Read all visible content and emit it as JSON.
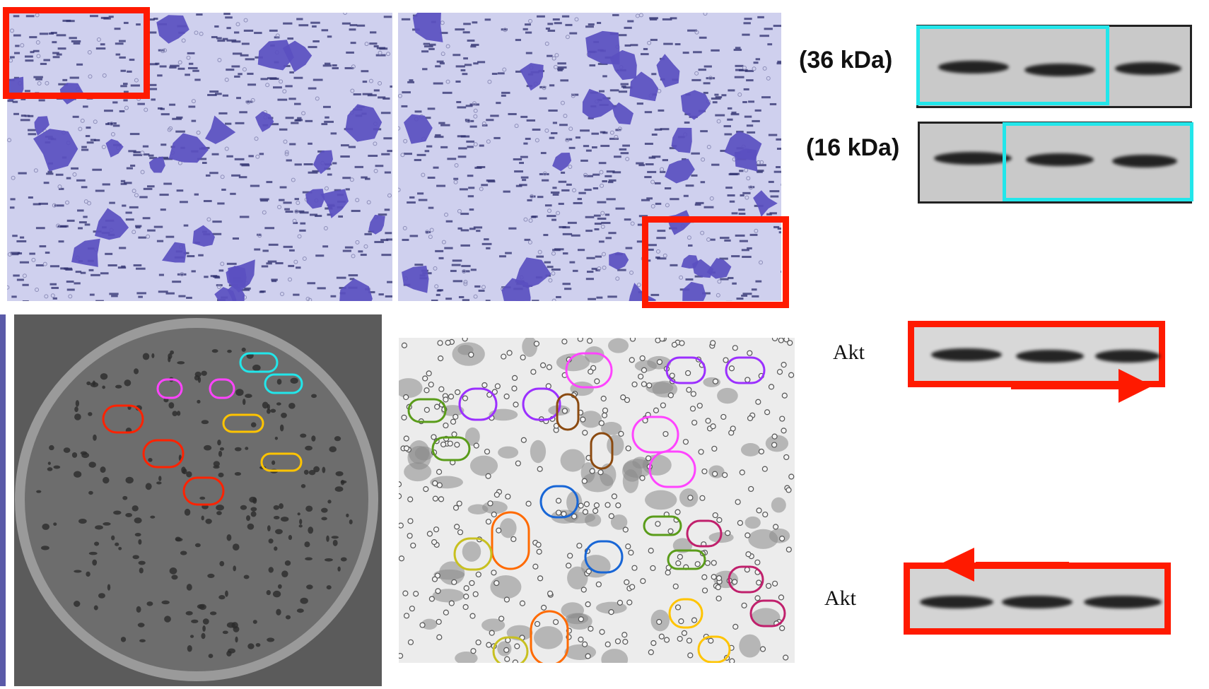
{
  "western_blot_top": {
    "row1_label": "(36 kDa)",
    "row2_label": "(16 kDa)"
  },
  "western_blot_bottom": {
    "row1_label": "Akt",
    "row2_label": "Akt"
  },
  "colors": {
    "highlight_red": "#ff1a00",
    "highlight_cyan": "#22e6ea",
    "stain_purple": "#5a4fc0",
    "micro_background": "#cfd0ee"
  },
  "icons": {
    "arrow_right": "arrow-right-icon",
    "arrow_left": "arrow-left-icon"
  }
}
